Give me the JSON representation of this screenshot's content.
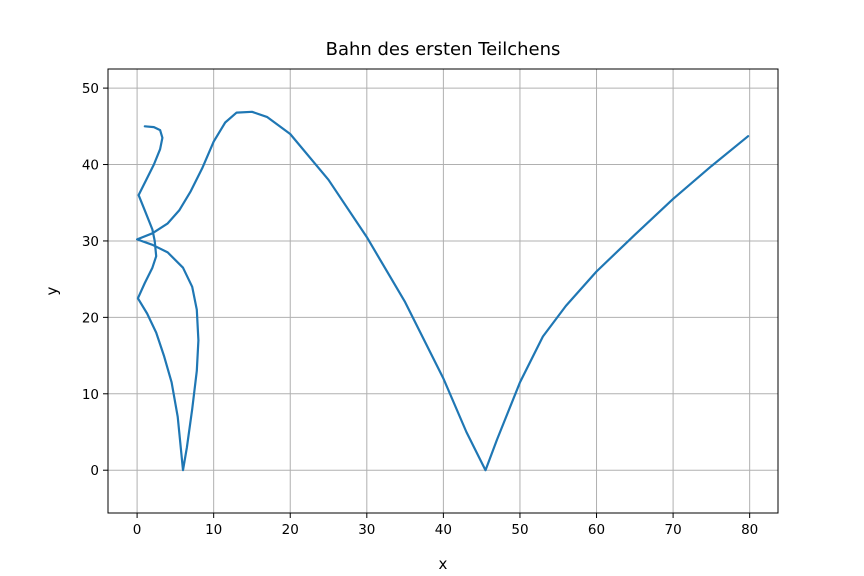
{
  "chart_data": {
    "type": "line",
    "title": "Bahn des ersten Teilchens",
    "xlabel": "x",
    "ylabel": "y",
    "xlim": [
      -3.8,
      83.7
    ],
    "ylim": [
      -5.6,
      52.5
    ],
    "xticks": [
      0,
      10,
      20,
      30,
      40,
      50,
      60,
      70,
      80
    ],
    "yticks": [
      0,
      10,
      20,
      30,
      40,
      50
    ],
    "grid": true,
    "line_color": "#1f77b4",
    "series": [
      {
        "values": [
          [
            1.0,
            45.0
          ],
          [
            2.2,
            44.9
          ],
          [
            3.0,
            44.5
          ],
          [
            3.3,
            43.5
          ],
          [
            3.0,
            42.0
          ],
          [
            2.2,
            40.0
          ],
          [
            1.2,
            38.0
          ],
          [
            0.2,
            36.0
          ],
          [
            1.0,
            34.0
          ],
          [
            2.0,
            31.5
          ],
          [
            2.3,
            30.0
          ],
          [
            2.5,
            28.0
          ],
          [
            2.0,
            26.5
          ],
          [
            1.0,
            24.5
          ],
          [
            0.1,
            22.5
          ],
          [
            1.3,
            20.5
          ],
          [
            2.5,
            18.0
          ],
          [
            3.5,
            15.0
          ],
          [
            4.5,
            11.5
          ],
          [
            5.3,
            7.0
          ],
          [
            6.0,
            0.0
          ],
          [
            6.5,
            3.0
          ],
          [
            7.2,
            8.0
          ],
          [
            7.8,
            13.0
          ],
          [
            8.0,
            17.0
          ],
          [
            7.8,
            21.0
          ],
          [
            7.2,
            24.0
          ],
          [
            6.0,
            26.5
          ],
          [
            4.0,
            28.5
          ],
          [
            2.0,
            29.5
          ],
          [
            0.0,
            30.2
          ],
          [
            2.0,
            31.0
          ],
          [
            4.0,
            32.3
          ],
          [
            5.5,
            34.0
          ],
          [
            7.0,
            36.5
          ],
          [
            8.5,
            39.5
          ],
          [
            10.0,
            43.0
          ],
          [
            11.5,
            45.5
          ],
          [
            13.0,
            46.8
          ],
          [
            15.0,
            46.9
          ],
          [
            17.0,
            46.2
          ],
          [
            20.0,
            44.0
          ],
          [
            25.0,
            38.0
          ],
          [
            30.0,
            30.5
          ],
          [
            35.0,
            22.0
          ],
          [
            40.0,
            12.0
          ],
          [
            43.0,
            5.0
          ],
          [
            45.5,
            0.0
          ],
          [
            47.0,
            4.0
          ],
          [
            50.0,
            11.5
          ],
          [
            53.0,
            17.5
          ],
          [
            56.0,
            21.5
          ],
          [
            60.0,
            26.0
          ],
          [
            65.0,
            30.8
          ],
          [
            70.0,
            35.5
          ],
          [
            75.0,
            39.8
          ],
          [
            79.8,
            43.7
          ]
        ]
      }
    ]
  }
}
